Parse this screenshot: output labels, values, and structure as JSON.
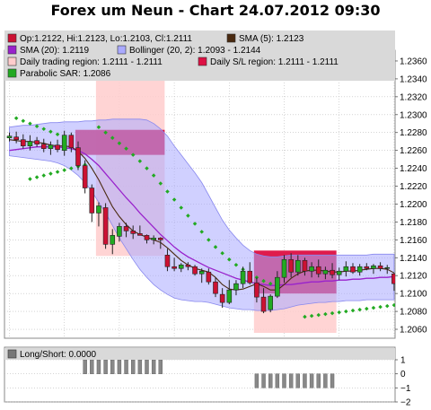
{
  "title": "Forex um Neun - Chart 24.07.2012 09:30",
  "legend": {
    "ohlc": "Op:1.2122, Hi:1.2123, Lo:1.2103, Cl:1.2111",
    "sma5": "SMA (5): 1.2123",
    "sma20": "SMA (20): 1.2119",
    "bollinger": "Bollinger (20, 2): 1.2093 - 1.2144",
    "daily_region": "Daily trading region: 1.2111 - 1.2111",
    "sl_region": "Daily S/L region: 1.2111 - 1.2111",
    "sar": "Parabolic SAR: 1.2086",
    "indicator": "Long/Short: 0.0000"
  },
  "colors": {
    "ohlc": "#cc1133",
    "sma5": "#4a2a10",
    "sma20": "#9922cc",
    "bollinger": "#aaaaff",
    "daily_region": "#ffcccc",
    "sl_region": "#dd1144",
    "sar": "#22aa22",
    "bull": "#22aa22",
    "bear": "#cc1133",
    "legend_bg": "#d9d9d9",
    "grid": "#bbbbbb"
  },
  "chart_data": [
    {
      "type": "candlestick",
      "ylim": [
        1.205,
        1.2372
      ],
      "yticks": [
        "1.2360",
        "1.2340",
        "1.2320",
        "1.2300",
        "1.2280",
        "1.2260",
        "1.2240",
        "1.2220",
        "1.2200",
        "1.2180",
        "1.2160",
        "1.2140",
        "1.2120",
        "1.2100",
        "1.2080",
        "1.2060"
      ],
      "candles": [
        [
          1.2274,
          1.228,
          1.227,
          1.2276
        ],
        [
          1.2275,
          1.2281,
          1.2268,
          1.2272
        ],
        [
          1.2272,
          1.2278,
          1.2262,
          1.2265
        ],
        [
          1.2265,
          1.2277,
          1.226,
          1.227
        ],
        [
          1.2271,
          1.2275,
          1.2264,
          1.2267
        ],
        [
          1.2267,
          1.2273,
          1.2258,
          1.2262
        ],
        [
          1.2262,
          1.227,
          1.2255,
          1.2266
        ],
        [
          1.2266,
          1.2272,
          1.2258,
          1.2261
        ],
        [
          1.226,
          1.2282,
          1.2254,
          1.2277
        ],
        [
          1.2277,
          1.228,
          1.2258,
          1.2263
        ],
        [
          1.2263,
          1.227,
          1.2238,
          1.2243
        ],
        [
          1.2243,
          1.2249,
          1.2212,
          1.2218
        ],
        [
          1.2218,
          1.2222,
          1.218,
          1.219
        ],
        [
          1.219,
          1.2202,
          1.2175,
          1.2198
        ],
        [
          1.2196,
          1.2201,
          1.215,
          1.2155
        ],
        [
          1.2155,
          1.2172,
          1.2144,
          1.2165
        ],
        [
          1.2164,
          1.2179,
          1.2158,
          1.2175
        ],
        [
          1.2175,
          1.2179,
          1.2163,
          1.217
        ],
        [
          1.217,
          1.2176,
          1.2161,
          1.2167
        ],
        [
          1.2167,
          1.2176,
          1.2165,
          1.2165
        ],
        [
          1.2165,
          1.2166,
          1.2156,
          1.216
        ],
        [
          1.216,
          1.2165,
          1.2155,
          1.2162
        ],
        [
          1.2162,
          1.2163,
          1.215,
          1.216
        ],
        [
          1.2143,
          1.215,
          1.2125,
          1.213
        ],
        [
          1.213,
          1.214,
          1.2125,
          1.2128
        ],
        [
          1.2128,
          1.2134,
          1.2124,
          1.2132
        ],
        [
          1.2132,
          1.2135,
          1.2126,
          1.213
        ],
        [
          1.213,
          1.2132,
          1.212,
          1.2122
        ],
        [
          1.2122,
          1.2128,
          1.2112,
          1.2125
        ],
        [
          1.2124,
          1.2128,
          1.211,
          1.2113
        ],
        [
          1.2113,
          1.2118,
          1.2096,
          1.21
        ],
        [
          1.2099,
          1.2106,
          1.2084,
          1.209
        ],
        [
          1.209,
          1.2115,
          1.2088,
          1.2104
        ],
        [
          1.2104,
          1.2115,
          1.2098,
          1.2111
        ],
        [
          1.2111,
          1.213,
          1.2106,
          1.2125
        ],
        [
          1.2125,
          1.2135,
          1.211,
          1.2112
        ],
        [
          1.2112,
          1.2118,
          1.209,
          1.2096
        ],
        [
          1.2096,
          1.2106,
          1.2078,
          1.208
        ],
        [
          1.2082,
          1.2099,
          1.2079,
          1.2097
        ],
        [
          1.2097,
          1.2125,
          1.2095,
          1.2118
        ],
        [
          1.2118,
          1.2143,
          1.2112,
          1.2138
        ],
        [
          1.2138,
          1.2145,
          1.2118,
          1.2124
        ],
        [
          1.2124,
          1.2143,
          1.212,
          1.2137
        ],
        [
          1.2137,
          1.214,
          1.212,
          1.2125
        ],
        [
          1.2125,
          1.2135,
          1.2118,
          1.213
        ],
        [
          1.213,
          1.2138,
          1.2118,
          1.2122
        ],
        [
          1.2122,
          1.213,
          1.2116,
          1.2126
        ],
        [
          1.2126,
          1.2134,
          1.2117,
          1.2121
        ],
        [
          1.2121,
          1.2129,
          1.2115,
          1.2125
        ],
        [
          1.2125,
          1.2136,
          1.2119,
          1.213
        ],
        [
          1.213,
          1.2134,
          1.2122,
          1.2124
        ],
        [
          1.2124,
          1.2133,
          1.212,
          1.213
        ],
        [
          1.213,
          1.2134,
          1.2126,
          1.2128
        ],
        [
          1.2128,
          1.2133,
          1.2122,
          1.2131
        ],
        [
          1.2131,
          1.2135,
          1.2125,
          1.2128
        ],
        [
          1.2128,
          1.2132,
          1.2122,
          1.2129
        ],
        [
          1.2122,
          1.2123,
          1.2103,
          1.2111
        ]
      ],
      "sma5": [
        1.2272,
        1.2271,
        1.227,
        1.227,
        1.2269,
        1.2268,
        1.2266,
        1.2265,
        1.2265,
        1.2264,
        1.2259,
        1.2251,
        1.224,
        1.2227,
        1.2212,
        1.2197,
        1.2186,
        1.2177,
        1.217,
        1.2166,
        1.2163,
        1.216,
        1.2157,
        1.2151,
        1.2144,
        1.2137,
        1.2132,
        1.2128,
        1.2126,
        1.2124,
        1.2118,
        1.211,
        1.2105,
        1.2104,
        1.2105,
        1.2108,
        1.2111,
        1.2108,
        1.2104,
        1.2104,
        1.211,
        1.2117,
        1.2122,
        1.2125,
        1.2126,
        1.2126,
        1.2125,
        1.2124,
        1.2124,
        1.2125,
        1.2125,
        1.2126,
        1.2127,
        1.2128,
        1.2128,
        1.2127,
        1.2123
      ],
      "sma20": [
        1.226,
        1.2261,
        1.2262,
        1.2263,
        1.2264,
        1.2264,
        1.2264,
        1.2264,
        1.2263,
        1.2262,
        1.226,
        1.2256,
        1.225,
        1.2243,
        1.2234,
        1.2225,
        1.2216,
        1.2207,
        1.2199,
        1.219,
        1.2182,
        1.2174,
        1.2166,
        1.2159,
        1.2152,
        1.2146,
        1.2141,
        1.2137,
        1.2133,
        1.2129,
        1.2126,
        1.2123,
        1.212,
        1.2117,
        1.2115,
        1.2113,
        1.2111,
        1.211,
        1.2109,
        1.2109,
        1.211,
        1.211,
        1.2111,
        1.2112,
        1.2113,
        1.2113,
        1.2114,
        1.2114,
        1.2115,
        1.2115,
        1.2116,
        1.2116,
        1.2117,
        1.2117,
        1.2118,
        1.2118,
        1.2119
      ],
      "bb_upper": [
        1.2286,
        1.2287,
        1.2288,
        1.2288,
        1.2289,
        1.229,
        1.2291,
        1.2291,
        1.2292,
        1.2292,
        1.2292,
        1.2293,
        1.2293,
        1.2294,
        1.2294,
        1.2295,
        1.2295,
        1.2295,
        1.2295,
        1.2295,
        1.2294,
        1.229,
        1.2284,
        1.2276,
        1.2265,
        1.2255,
        1.2245,
        1.2235,
        1.2224,
        1.221,
        1.2196,
        1.2182,
        1.2171,
        1.2162,
        1.2154,
        1.2148,
        1.2144,
        1.2142,
        1.2141,
        1.2141,
        1.2142,
        1.2143,
        1.2143,
        1.2143,
        1.2143,
        1.2143,
        1.2143,
        1.2143,
        1.2143,
        1.2143,
        1.2143,
        1.2143,
        1.2143,
        1.2144,
        1.2144,
        1.2144,
        1.2144
      ],
      "bb_lower": [
        1.2254,
        1.2253,
        1.2252,
        1.2251,
        1.225,
        1.2249,
        1.2248,
        1.2246,
        1.2243,
        1.2238,
        1.2232,
        1.2224,
        1.2214,
        1.2202,
        1.219,
        1.2176,
        1.2162,
        1.215,
        1.2138,
        1.2127,
        1.2118,
        1.211,
        1.2104,
        1.2099,
        1.2095,
        1.2093,
        1.2092,
        1.2091,
        1.2091,
        1.209,
        1.2088,
        1.2086,
        1.2084,
        1.2083,
        1.2082,
        1.2082,
        1.2081,
        1.2081,
        1.2081,
        1.2082,
        1.2083,
        1.2085,
        1.2087,
        1.2088,
        1.2089,
        1.209,
        1.209,
        1.2091,
        1.2091,
        1.2092,
        1.2092,
        1.2092,
        1.2093,
        1.2093,
        1.2093,
        1.2093,
        1.2093
      ],
      "sar": [
        [
          1,
          1.2296
        ],
        [
          2,
          1.2293
        ],
        [
          3,
          1.229
        ],
        [
          4,
          1.2287
        ],
        [
          5,
          1.2284
        ],
        [
          6,
          1.2281
        ],
        [
          7,
          1.2278
        ],
        [
          3,
          1.2228
        ],
        [
          4,
          1.223
        ],
        [
          5,
          1.2232
        ],
        [
          6,
          1.2234
        ],
        [
          7,
          1.2236
        ],
        [
          8,
          1.2238
        ],
        [
          9,
          1.224
        ],
        [
          10,
          1.2242
        ],
        [
          11,
          1.2244
        ],
        [
          13,
          1.2286
        ],
        [
          14,
          1.228
        ],
        [
          15,
          1.2274
        ],
        [
          16,
          1.2268
        ],
        [
          17,
          1.2262
        ],
        [
          18,
          1.2255
        ],
        [
          19,
          1.2248
        ],
        [
          20,
          1.224
        ],
        [
          21,
          1.2232
        ],
        [
          22,
          1.2223
        ],
        [
          23,
          1.2214
        ],
        [
          24,
          1.2205
        ],
        [
          25,
          1.2196
        ],
        [
          26,
          1.2187
        ],
        [
          27,
          1.2178
        ],
        [
          28,
          1.2169
        ],
        [
          29,
          1.216
        ],
        [
          30,
          1.2152
        ],
        [
          31,
          1.2145
        ],
        [
          32,
          1.2138
        ],
        [
          33,
          1.2132
        ],
        [
          34,
          1.2127
        ],
        [
          35,
          1.2122
        ],
        [
          36,
          1.2118
        ],
        [
          37,
          1.2114
        ],
        [
          38,
          1.2111
        ],
        [
          43,
          1.2074
        ],
        [
          44,
          1.2075
        ],
        [
          45,
          1.2076
        ],
        [
          46,
          1.2077
        ],
        [
          47,
          1.2078
        ],
        [
          48,
          1.2079
        ],
        [
          49,
          1.208
        ],
        [
          50,
          1.2081
        ],
        [
          51,
          1.2082
        ],
        [
          52,
          1.2083
        ],
        [
          53,
          1.2084
        ],
        [
          54,
          1.2085
        ],
        [
          55,
          1.2086
        ],
        [
          56,
          1.2087
        ],
        [
          57,
          1.2088
        ]
      ],
      "regions": [
        {
          "kind": "daily_trading",
          "from": 12.6,
          "to": 22.6,
          "low": 1.2142,
          "high": 1.2372
        },
        {
          "kind": "sl",
          "from": 9.6,
          "to": 22.6,
          "low": 1.2255,
          "high": 1.2283
        },
        {
          "kind": "daily_trading",
          "from": 35.6,
          "to": 47.6,
          "low": 1.2056,
          "high": 1.2148
        },
        {
          "kind": "sl",
          "from": 35.6,
          "to": 47.6,
          "low": 1.21,
          "high": 1.2148
        }
      ]
    },
    {
      "type": "bar",
      "ylim": [
        -2,
        1
      ],
      "yticks": [
        "1",
        "0",
        "−1",
        "−2"
      ],
      "values": [
        0,
        0,
        0,
        0,
        0,
        0,
        0,
        0,
        0,
        0,
        0,
        1,
        1,
        1,
        1,
        1,
        1,
        1,
        1,
        1,
        1,
        1,
        1,
        0,
        0,
        0,
        0,
        0,
        0,
        0,
        0,
        0,
        0,
        0,
        0,
        0,
        -1,
        -1,
        -1,
        -1,
        -1,
        -1,
        -1,
        -1,
        -1,
        -1,
        -1,
        -1,
        0,
        0,
        0,
        0,
        0,
        0,
        0,
        0,
        0
      ]
    }
  ]
}
